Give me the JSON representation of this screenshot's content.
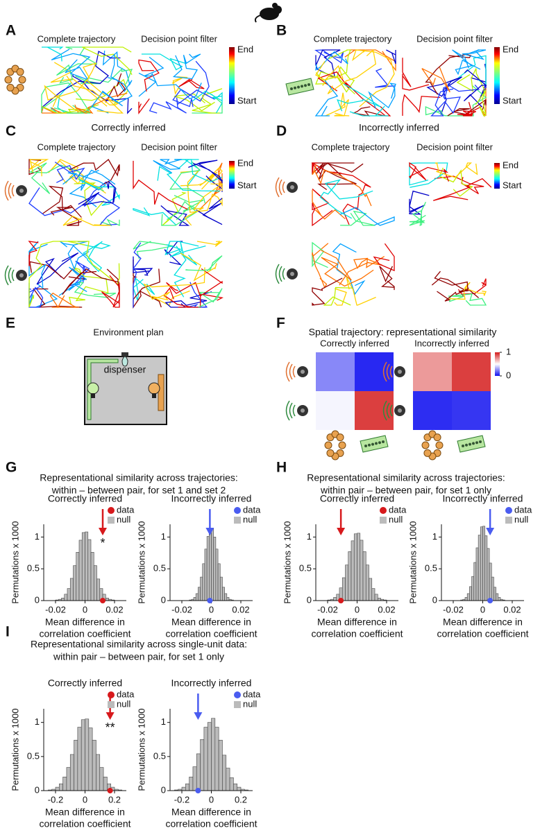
{
  "panel_labels": [
    "A",
    "B",
    "C",
    "D",
    "E",
    "F",
    "G",
    "H",
    "I"
  ],
  "trajectory_text": {
    "complete": "Complete trajectory",
    "filter": "Decision point filter",
    "end": "End",
    "start": "Start"
  },
  "inference": {
    "correct": "Correctly inferred",
    "incorrect": "Incorrectly inferred",
    "correct_color": "#e0201e",
    "incorrect_color": "#4a5cf0"
  },
  "environment": {
    "title": "Environment plan",
    "dispenser": "dispenser"
  },
  "similarity_title": "Spatial trajectory: representational similarity",
  "hist_titles": {
    "G": [
      "Representational similarity across trajectories:",
      "within – between pair, for set 1 and set 2"
    ],
    "H": [
      "Representational similarity across trajectories:",
      "within pair – between pair, for set 1 only"
    ],
    "I": [
      "Representational similarity across single-unit data:",
      "within pair – between pair, for set 1 only"
    ]
  },
  "chart_data": [
    {
      "type": "heatmap",
      "title": "Correctly inferred",
      "values": [
        [
          0.25,
          0.05
        ],
        [
          0.48,
          0.92
        ]
      ],
      "clim": [
        0,
        1
      ],
      "colormap": [
        "#1010f0",
        "#ffffff",
        "#d41a1a"
      ]
    },
    {
      "type": "heatmap",
      "title": "Incorrectly inferred",
      "values": [
        [
          0.72,
          0.92
        ],
        [
          0.06,
          0.08
        ]
      ],
      "clim": [
        0,
        1
      ],
      "cticks": [
        0,
        1
      ],
      "colormap": [
        "#1010f0",
        "#ffffff",
        "#d41a1a"
      ]
    },
    {
      "type": "histogram",
      "title": "Correctly inferred",
      "title_color": "#e0201e",
      "ylabel": "Permutations x 1000",
      "xlabel": [
        "Mean difference in",
        "correlation coefficient"
      ],
      "bins": [
        -0.02,
        -0.018,
        -0.016,
        -0.014,
        -0.012,
        -0.01,
        -0.008,
        -0.006,
        -0.004,
        -0.002,
        0,
        0.002,
        0.004,
        0.006,
        0.008,
        0.01,
        0.012,
        0.014,
        0.016,
        0.018,
        0.02
      ],
      "series": [
        {
          "name": "null",
          "color": "#bbbbbb",
          "values": [
            0.01,
            0.02,
            0.04,
            0.1,
            0.19,
            0.35,
            0.55,
            0.76,
            0.95,
            1.07,
            1.08,
            0.96,
            0.76,
            0.55,
            0.34,
            0.19,
            0.1,
            0.04,
            0.02,
            0.01
          ]
        }
      ],
      "marker": {
        "name": "data",
        "x": 0.012,
        "color": "#d7191c"
      },
      "annotation": "*",
      "xlim": [
        -0.028,
        0.028
      ],
      "xticks": [
        -0.02,
        0,
        0.02
      ],
      "ylim": [
        0,
        1.2
      ],
      "yticks": [
        0,
        0.5,
        1
      ]
    },
    {
      "type": "histogram",
      "title": "Incorrectly inferred",
      "title_color": "#4a5cf0",
      "ylabel": "Permutations x 1000",
      "xlabel": [
        "Mean difference in",
        "correlation coefficient"
      ],
      "bins": [
        -0.015,
        -0.0135,
        -0.012,
        -0.0105,
        -0.009,
        -0.0075,
        -0.006,
        -0.0045,
        -0.003,
        -0.0015,
        0,
        0.0015,
        0.003,
        0.0045,
        0.006,
        0.0075,
        0.009,
        0.0105,
        0.012,
        0.0135,
        0.015
      ],
      "series": [
        {
          "name": "null",
          "color": "#bbbbbb",
          "values": [
            0.01,
            0.02,
            0.05,
            0.11,
            0.21,
            0.37,
            0.58,
            0.81,
            1.01,
            1.13,
            1.14,
            1.0,
            0.81,
            0.58,
            0.37,
            0.21,
            0.11,
            0.05,
            0.02,
            0.01
          ]
        }
      ],
      "marker": {
        "name": "data",
        "x": -0.001,
        "color": "#4a5cf0"
      },
      "xlim": [
        -0.028,
        0.028
      ],
      "xticks": [
        -0.02,
        0,
        0.02
      ],
      "ylim": [
        0,
        1.2
      ],
      "yticks": [
        0,
        0.5,
        1
      ]
    },
    {
      "type": "histogram",
      "title": "Correctly inferred",
      "title_color": "#e0201e",
      "ylabel": "Permutations x 1000",
      "xlabel": [
        "Mean difference in",
        "correlation coefficient"
      ],
      "bins": [
        -0.02,
        -0.018,
        -0.016,
        -0.014,
        -0.012,
        -0.01,
        -0.008,
        -0.006,
        -0.004,
        -0.002,
        0,
        0.002,
        0.004,
        0.006,
        0.008,
        0.01,
        0.012,
        0.014,
        0.016,
        0.018,
        0.02
      ],
      "series": [
        {
          "name": "null",
          "color": "#bbbbbb",
          "values": [
            0.01,
            0.02,
            0.05,
            0.1,
            0.2,
            0.36,
            0.56,
            0.77,
            0.94,
            1.05,
            1.06,
            0.95,
            0.77,
            0.56,
            0.35,
            0.19,
            0.1,
            0.04,
            0.02,
            0.01
          ]
        }
      ],
      "marker": {
        "name": "data",
        "x": -0.011,
        "color": "#d7191c"
      },
      "xlim": [
        -0.028,
        0.028
      ],
      "xticks": [
        -0.02,
        0,
        0.02
      ],
      "ylim": [
        0,
        1.2
      ],
      "yticks": [
        0,
        0.5,
        1
      ]
    },
    {
      "type": "histogram",
      "title": "Incorrectly inferred",
      "title_color": "#4a5cf0",
      "ylabel": "Permutations x 1000",
      "xlabel": [
        "Mean difference in",
        "correlation coefficient"
      ],
      "bins": [
        -0.015,
        -0.0135,
        -0.012,
        -0.0105,
        -0.009,
        -0.0075,
        -0.006,
        -0.0045,
        -0.003,
        -0.0015,
        0,
        0.0015,
        0.003,
        0.0045,
        0.006,
        0.0075,
        0.009,
        0.0105,
        0.012,
        0.0135,
        0.015
      ],
      "series": [
        {
          "name": "null",
          "color": "#bbbbbb",
          "values": [
            0.01,
            0.02,
            0.05,
            0.11,
            0.22,
            0.38,
            0.6,
            0.83,
            1.03,
            1.16,
            1.17,
            1.02,
            0.82,
            0.59,
            0.37,
            0.21,
            0.11,
            0.05,
            0.02,
            0.01
          ]
        }
      ],
      "marker": {
        "name": "data",
        "x": 0.005,
        "color": "#4a5cf0"
      },
      "xlim": [
        -0.028,
        0.028
      ],
      "xticks": [
        -0.02,
        0,
        0.02
      ],
      "ylim": [
        0,
        1.2
      ],
      "yticks": [
        0,
        0.5,
        1
      ]
    },
    {
      "type": "histogram",
      "title": "Correctly inferred",
      "title_color": "#e0201e",
      "ylabel": "Permutations x 1000",
      "xlabel": [
        "Mean difference in",
        "correlation coefficient"
      ],
      "bins": [
        -0.25,
        -0.225,
        -0.2,
        -0.175,
        -0.15,
        -0.125,
        -0.1,
        -0.075,
        -0.05,
        -0.025,
        0,
        0.025,
        0.05,
        0.075,
        0.1,
        0.125,
        0.15,
        0.175,
        0.2,
        0.225,
        0.25
      ],
      "series": [
        {
          "name": "null",
          "color": "#bbbbbb",
          "values": [
            0.01,
            0.02,
            0.05,
            0.1,
            0.2,
            0.34,
            0.53,
            0.74,
            0.93,
            1.04,
            1.05,
            0.92,
            0.74,
            0.53,
            0.34,
            0.2,
            0.1,
            0.05,
            0.02,
            0.01
          ]
        }
      ],
      "marker": {
        "name": "data",
        "x": 0.17,
        "color": "#d7191c"
      },
      "annotation": "**",
      "xlim": [
        -0.28,
        0.28
      ],
      "xticks": [
        -0.2,
        0,
        0.2
      ],
      "ylim": [
        0,
        1.2
      ],
      "yticks": [
        0,
        0.5,
        1
      ]
    },
    {
      "type": "histogram",
      "title": "Incorrectly inferred",
      "title_color": "#4a5cf0",
      "ylabel": "Permutations x 1000",
      "xlabel": [
        "Mean difference in",
        "correlation coefficient"
      ],
      "bins": [
        -0.25,
        -0.225,
        -0.2,
        -0.175,
        -0.15,
        -0.125,
        -0.1,
        -0.075,
        -0.05,
        -0.025,
        0,
        0.025,
        0.05,
        0.075,
        0.1,
        0.125,
        0.15,
        0.175,
        0.2,
        0.225,
        0.25
      ],
      "series": [
        {
          "name": "null",
          "color": "#bbbbbb",
          "values": [
            0.01,
            0.02,
            0.05,
            0.1,
            0.2,
            0.35,
            0.54,
            0.75,
            0.93,
            1.0,
            1.06,
            0.93,
            0.74,
            0.52,
            0.33,
            0.19,
            0.1,
            0.05,
            0.02,
            0.01
          ]
        }
      ],
      "marker": {
        "name": "data",
        "x": -0.09,
        "color": "#4a5cf0"
      },
      "xlim": [
        -0.28,
        0.28
      ],
      "xticks": [
        -0.2,
        0,
        0.2
      ],
      "ylim": [
        0,
        1.2
      ],
      "yticks": [
        0,
        0.5,
        1
      ]
    }
  ]
}
